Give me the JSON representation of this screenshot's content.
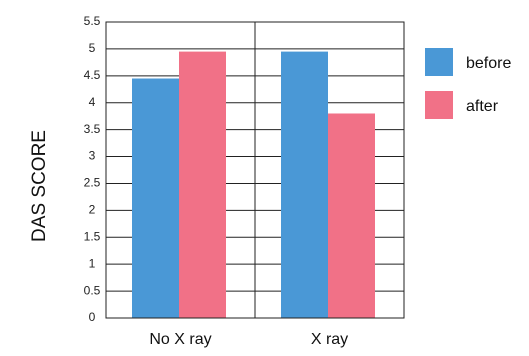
{
  "chart_data": {
    "type": "bar",
    "categories": [
      "No X ray",
      "X ray"
    ],
    "series": [
      {
        "name": "before",
        "values": [
          4.45,
          4.95
        ],
        "color": "#4A98D6"
      },
      {
        "name": "after",
        "values": [
          4.95,
          3.8
        ],
        "color": "#F17187"
      }
    ],
    "title": "",
    "xlabel": "",
    "ylabel": "DAS SCORE",
    "ylim": [
      0,
      5.5
    ],
    "yticks": [
      "0",
      "0.5",
      "1",
      "1.5",
      "2",
      "2.5",
      "3",
      "3.5",
      "4",
      "4.5",
      "5",
      "5.5"
    ],
    "grid": true,
    "legend_position": "right"
  }
}
